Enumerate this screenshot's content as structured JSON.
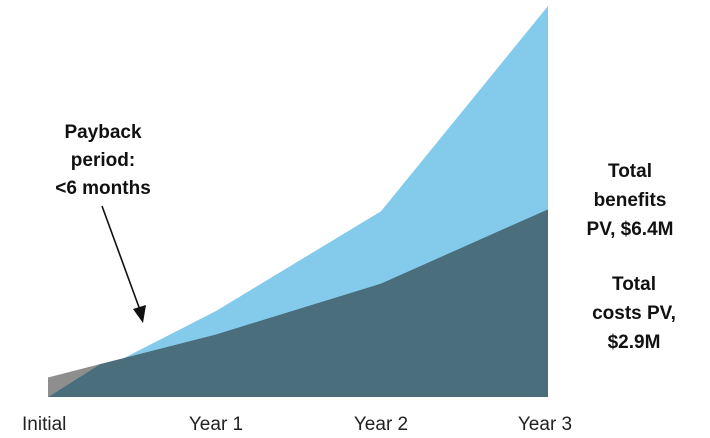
{
  "chart_data": {
    "type": "area",
    "categories": [
      "Initial",
      "Year 1",
      "Year 2",
      "Year 3"
    ],
    "series": [
      {
        "name": "Total benefits PV, $6.4M",
        "values": [
          0,
          2.2,
          4.75,
          10.0
        ],
        "color": "#84CBEB"
      },
      {
        "name": "Total costs PV, $2.9M",
        "values": [
          0.5,
          1.6,
          2.9,
          4.8
        ],
        "color": "#4A6E7C"
      }
    ],
    "ylim": [
      0,
      10
    ],
    "grid": false,
    "legend": "right"
  },
  "annotations": {
    "payback": [
      "Payback",
      "period:",
      "<6 months"
    ],
    "benefits": [
      "Total",
      "benefits",
      "PV, $6.4M"
    ],
    "costs": [
      "Total",
      "costs PV,",
      "$2.9M"
    ]
  },
  "colors": {
    "initial_cost": "#8E8E8E",
    "arrow": "#111111",
    "text": "#111111"
  }
}
